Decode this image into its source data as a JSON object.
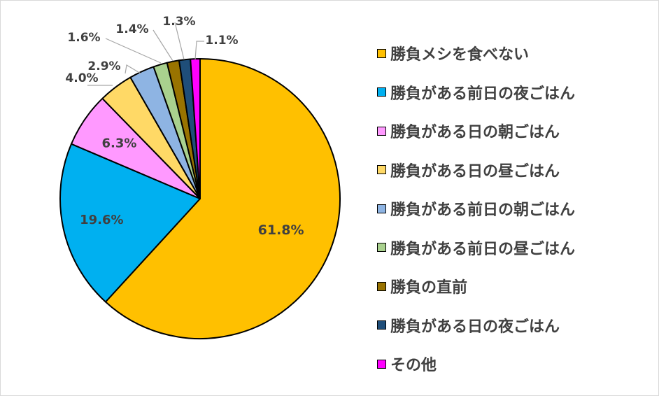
{
  "chart_data": {
    "type": "pie",
    "title": "",
    "legend_position": "right",
    "slices": [
      {
        "label": "勝負メシを食べない",
        "value": 61.8,
        "display": "61.8%",
        "color": "#FFC000"
      },
      {
        "label": "勝負がある前日の夜ごはん",
        "value": 19.6,
        "display": "19.6%",
        "color": "#00B0F0"
      },
      {
        "label": "勝負がある日の朝ごはん",
        "value": 6.3,
        "display": "6.3%",
        "color": "#FF99FF"
      },
      {
        "label": "勝負がある日の昼ごはん",
        "value": 4.0,
        "display": "4.0%",
        "color": "#FFD966"
      },
      {
        "label": "勝負がある前日の朝ごはん",
        "value": 2.9,
        "display": "2.9%",
        "color": "#8EB4E3"
      },
      {
        "label": "勝負がある前日の昼ごはん",
        "value": 1.6,
        "display": "1.6%",
        "color": "#A9D18E"
      },
      {
        "label": "勝負の直前",
        "value": 1.4,
        "display": "1.4%",
        "color": "#997300"
      },
      {
        "label": "勝負がある日の夜ごはん",
        "value": 1.3,
        "display": "1.3%",
        "color": "#1F4E79"
      },
      {
        "label": "その他",
        "value": 1.1,
        "display": "1.1%",
        "color": "#FF00FF"
      }
    ]
  }
}
